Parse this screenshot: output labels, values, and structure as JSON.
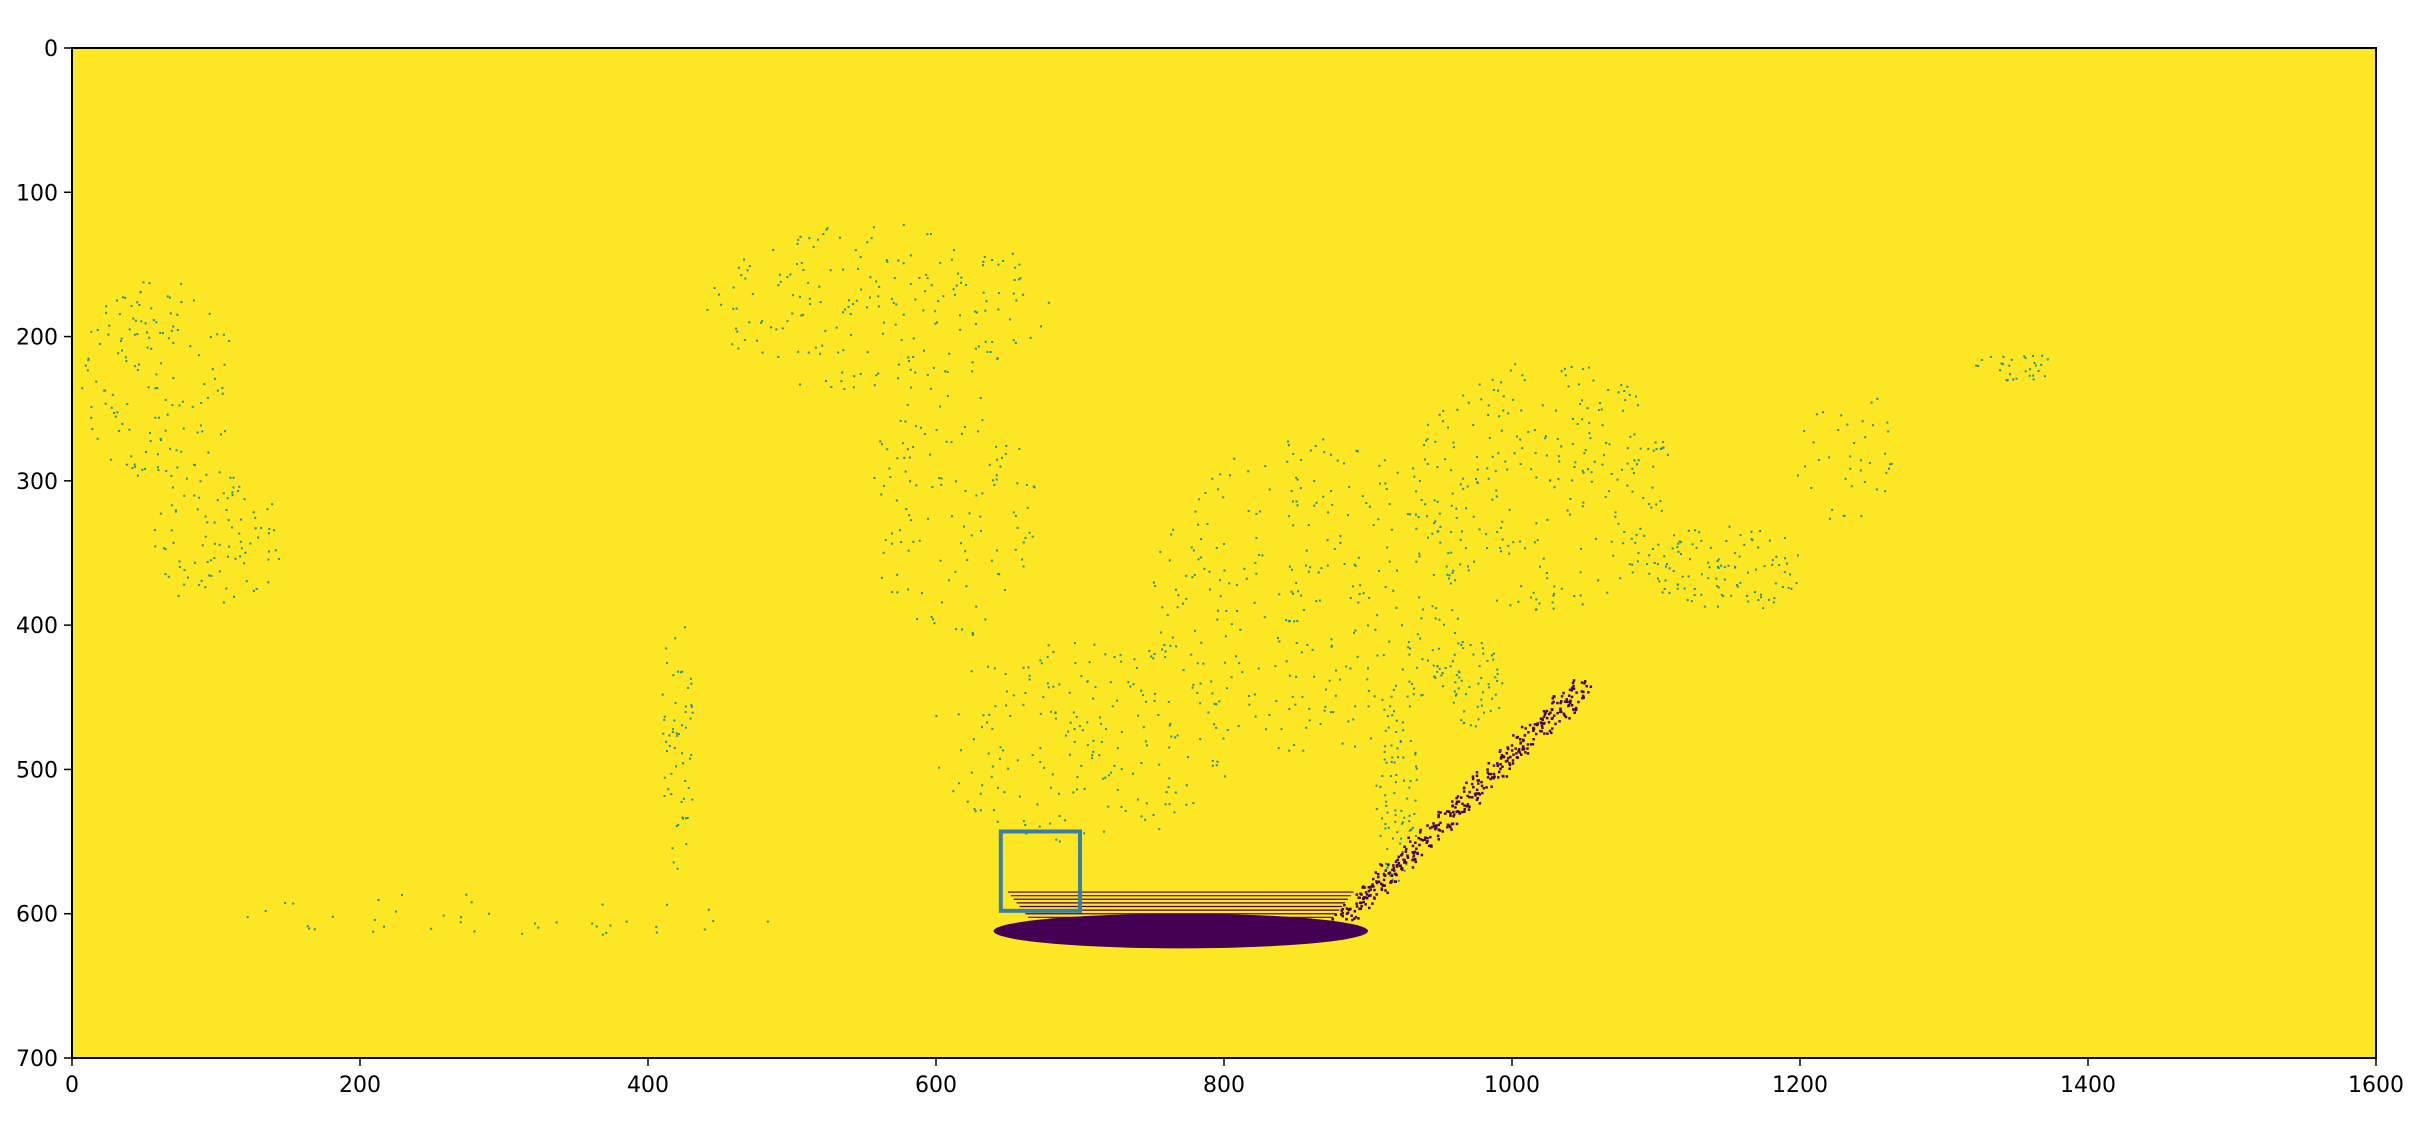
{
  "chart_data": {
    "type": "heatmap",
    "title": "",
    "xlabel": "",
    "ylabel": "",
    "xlim": [
      0,
      1600
    ],
    "ylim": [
      700,
      0
    ],
    "y_axis_inverted": true,
    "background_color": "#fde725",
    "point_color": "#440154",
    "scatter_color": "#21918c",
    "box_color": "#3b7fa6",
    "x_ticks": [
      {
        "value": 0,
        "label": "0"
      },
      {
        "value": 200,
        "label": "200"
      },
      {
        "value": 400,
        "label": "400"
      },
      {
        "value": 600,
        "label": "600"
      },
      {
        "value": 800,
        "label": "800"
      },
      {
        "value": 1000,
        "label": "1000"
      },
      {
        "value": 1200,
        "label": "1200"
      },
      {
        "value": 1400,
        "label": "1400"
      },
      {
        "value": 1600,
        "label": "1600"
      }
    ],
    "y_ticks": [
      {
        "value": 0,
        "label": "0"
      },
      {
        "value": 100,
        "label": "100"
      },
      {
        "value": 200,
        "label": "200"
      },
      {
        "value": 300,
        "label": "300"
      },
      {
        "value": 400,
        "label": "400"
      },
      {
        "value": 500,
        "label": "500"
      },
      {
        "value": 600,
        "label": "600"
      },
      {
        "value": 700,
        "label": "700"
      }
    ],
    "bounding_box": {
      "x0": 645,
      "y0": 543,
      "x1": 700,
      "y1": 598
    },
    "dense_region": {
      "x": [
        640,
        900
      ],
      "y": [
        598,
        622
      ],
      "description_shape": "dark band near bottom center"
    },
    "diagonal_band": {
      "start": [
        880,
        605
      ],
      "end": [
        1050,
        440
      ]
    },
    "point_clusters": [
      {
        "cx": 60,
        "cy": 230,
        "rx": 55,
        "ry": 70,
        "n": 140
      },
      {
        "cx": 100,
        "cy": 340,
        "rx": 45,
        "ry": 50,
        "n": 90
      },
      {
        "cx": 560,
        "cy": 180,
        "rx": 120,
        "ry": 60,
        "n": 200
      },
      {
        "cx": 610,
        "cy": 320,
        "rx": 60,
        "ry": 90,
        "n": 120
      },
      {
        "cx": 420,
        "cy": 480,
        "rx": 12,
        "ry": 90,
        "n": 60
      },
      {
        "cx": 700,
        "cy": 480,
        "rx": 110,
        "ry": 70,
        "n": 200
      },
      {
        "cx": 860,
        "cy": 380,
        "rx": 110,
        "ry": 110,
        "n": 320
      },
      {
        "cx": 1020,
        "cy": 300,
        "rx": 90,
        "ry": 90,
        "n": 260
      },
      {
        "cx": 1150,
        "cy": 360,
        "rx": 60,
        "ry": 30,
        "n": 110
      },
      {
        "cx": 1230,
        "cy": 280,
        "rx": 35,
        "ry": 50,
        "n": 40
      },
      {
        "cx": 1350,
        "cy": 220,
        "rx": 30,
        "ry": 10,
        "n": 30
      },
      {
        "cx": 300,
        "cy": 600,
        "rx": 200,
        "ry": 15,
        "n": 40
      },
      {
        "cx": 920,
        "cy": 520,
        "rx": 15,
        "ry": 60,
        "n": 80
      },
      {
        "cx": 970,
        "cy": 440,
        "rx": 25,
        "ry": 30,
        "n": 60
      }
    ]
  }
}
